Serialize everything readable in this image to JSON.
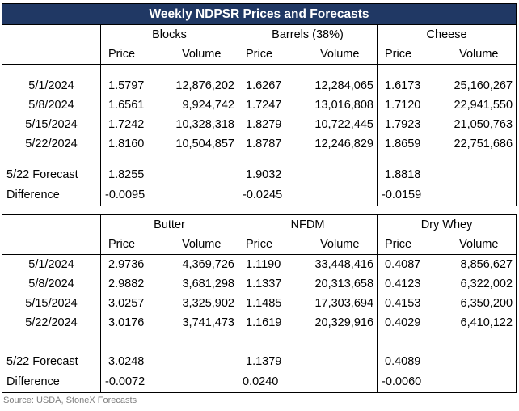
{
  "title": "Weekly NDPSR Prices and Forecasts",
  "top": {
    "groups": [
      "Blocks",
      "Barrels (38%)",
      "Cheese"
    ],
    "subheaders": [
      "Price",
      "Volume",
      "Price",
      "Volume",
      "Price",
      "Volume"
    ],
    "rows": [
      {
        "date": "5/1/2024",
        "cells": [
          "1.5797",
          "12,876,202",
          "1.6267",
          "12,284,065",
          "1.6173",
          "25,160,267"
        ]
      },
      {
        "date": "5/8/2024",
        "cells": [
          "1.6561",
          "9,924,742",
          "1.7247",
          "13,016,808",
          "1.7120",
          "22,941,550"
        ]
      },
      {
        "date": "5/15/2024",
        "cells": [
          "1.7242",
          "10,328,318",
          "1.8279",
          "10,722,445",
          "1.7923",
          "21,050,763"
        ]
      },
      {
        "date": "5/22/2024",
        "cells": [
          "1.8160",
          "10,504,857",
          "1.8787",
          "12,246,829",
          "1.8659",
          "22,751,686"
        ]
      }
    ],
    "forecast": {
      "label": "5/22 Forecast",
      "values": [
        "1.8255",
        "1.9032",
        "1.8818"
      ]
    },
    "difference": {
      "label": "Difference",
      "values": [
        "-0.0095",
        "-0.0245",
        "-0.0159"
      ]
    }
  },
  "bottom": {
    "groups": [
      "Butter",
      "NFDM",
      "Dry Whey"
    ],
    "subheaders": [
      "Price",
      "Volume",
      "Price",
      "Volume",
      "Price",
      "Volume"
    ],
    "rows": [
      {
        "date": "5/1/2024",
        "cells": [
          "2.9736",
          "4,369,726",
          "1.1190",
          "33,448,416",
          "0.4087",
          "8,856,627"
        ]
      },
      {
        "date": "5/8/2024",
        "cells": [
          "2.9882",
          "3,681,298",
          "1.1337",
          "20,313,658",
          "0.4123",
          "6,322,002"
        ]
      },
      {
        "date": "5/15/2024",
        "cells": [
          "3.0257",
          "3,325,902",
          "1.1485",
          "17,303,694",
          "0.4153",
          "6,350,200"
        ]
      },
      {
        "date": "5/22/2024",
        "cells": [
          "3.0176",
          "3,741,473",
          "1.1619",
          "20,329,916",
          "0.4029",
          "6,410,122"
        ]
      }
    ],
    "forecast": {
      "label": "5/22 Forecast",
      "values": [
        "3.0248",
        "1.1379",
        "0.4089"
      ]
    },
    "difference": {
      "label": "Difference",
      "values": [
        "-0.0072",
        "0.0240",
        "-0.0060"
      ]
    }
  },
  "source": "Source: USDA, StoneX Forecasts"
}
